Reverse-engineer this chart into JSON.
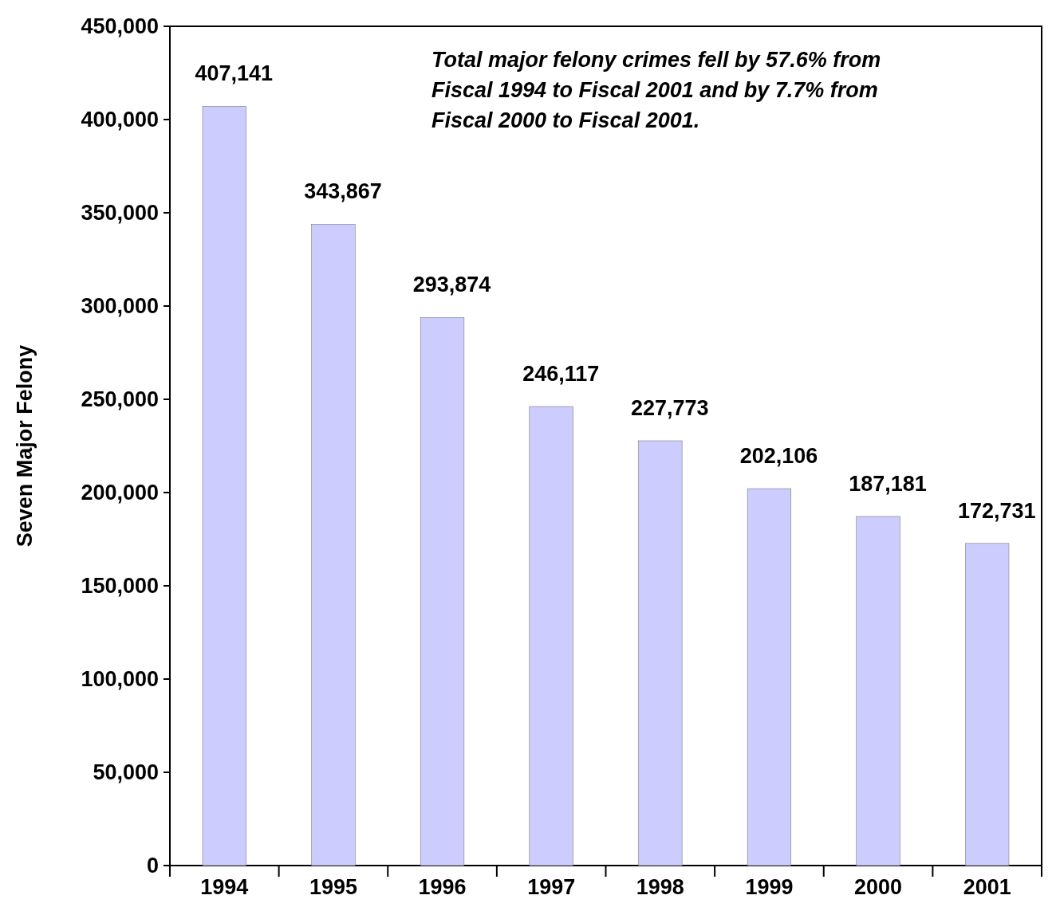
{
  "chart_data": {
    "type": "bar",
    "ylabel": "Seven Major Felony",
    "categories": [
      "1994",
      "1995",
      "1996",
      "1997",
      "1998",
      "1999",
      "2000",
      "2001"
    ],
    "values": [
      407141,
      343867,
      293874,
      246117,
      227773,
      202106,
      187181,
      172731
    ],
    "value_labels": [
      "407,141",
      "343,867",
      "293,874",
      "246,117",
      "227,773",
      "202,106",
      "187,181",
      "172,731"
    ],
    "color": "#ccccff",
    "ylim": [
      0,
      450000
    ],
    "yticks": [
      {
        "value": 0,
        "label": "0"
      },
      {
        "value": 50000,
        "label": "50,000"
      },
      {
        "value": 100000,
        "label": "100,000"
      },
      {
        "value": 150000,
        "label": "150,000"
      },
      {
        "value": 200000,
        "label": "200,000"
      },
      {
        "value": 250000,
        "label": "250,000"
      },
      {
        "value": 300000,
        "label": "300,000"
      },
      {
        "value": 350000,
        "label": "350,000"
      },
      {
        "value": 400000,
        "label": "400,000"
      },
      {
        "value": 450000,
        "label": "450,000"
      }
    ],
    "annotations": [
      "Total major felony crimes fell by 57.6% from Fiscal 1994 to Fiscal 2001 and by 7.7% from Fiscal 2000 to Fiscal 2001."
    ],
    "grid": false
  }
}
